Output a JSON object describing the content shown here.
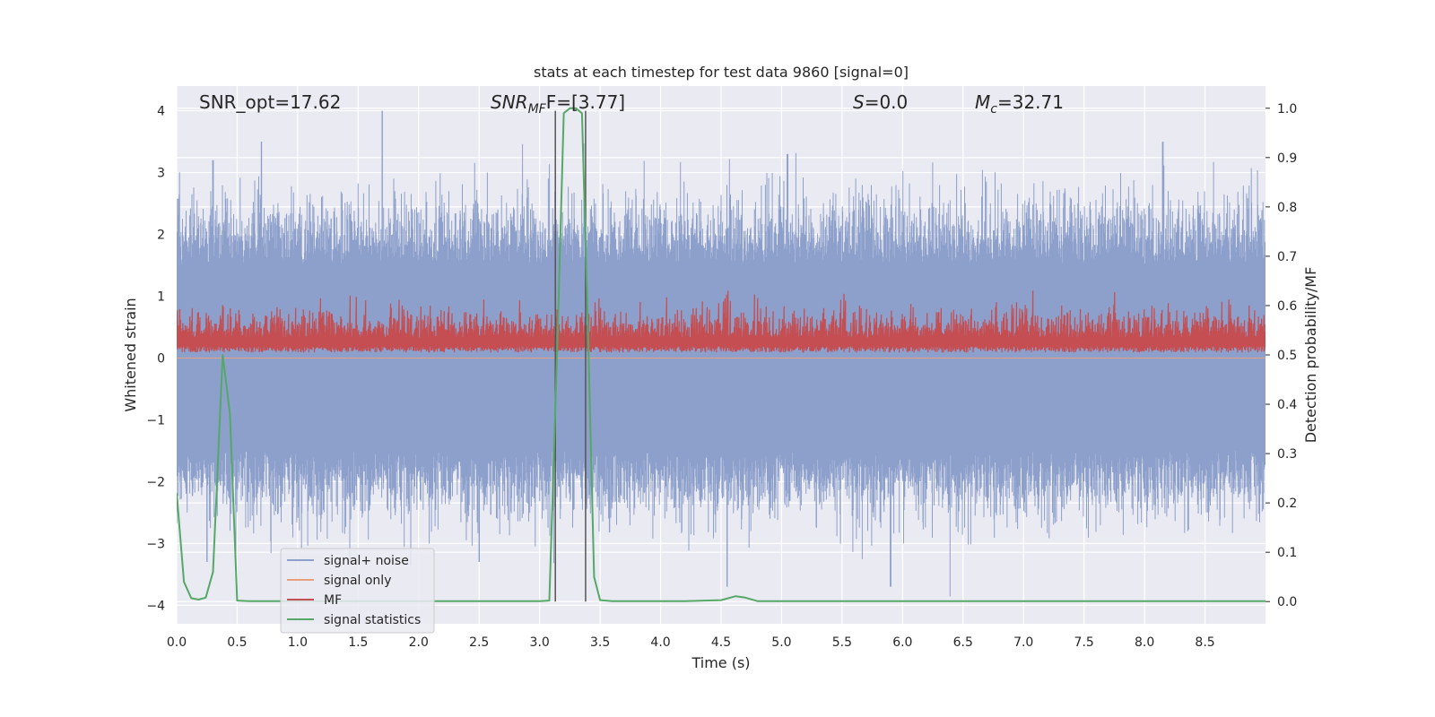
{
  "chart_data": {
    "type": "line",
    "title": "stats at each timestep for test data 9860 [signal=0]",
    "xlabel": "Time (s)",
    "ylabel_left": "Whitened strain",
    "ylabel_right": "Detection probability/MF",
    "xlim": [
      0,
      9.0
    ],
    "ylim_left": [
      -4.3,
      4.4
    ],
    "ylim_right": [
      -0.045,
      1.045
    ],
    "x_ticks": [
      0.0,
      0.5,
      1.0,
      1.5,
      2.0,
      2.5,
      3.0,
      3.5,
      4.0,
      4.5,
      5.0,
      5.5,
      6.0,
      6.5,
      7.0,
      7.5,
      8.0,
      8.5
    ],
    "x_tick_labels": [
      "0.0",
      "0.5",
      "1.0",
      "1.5",
      "2.0",
      "2.5",
      "3.0",
      "3.5",
      "4.0",
      "4.5",
      "5.0",
      "5.5",
      "6.0",
      "6.5",
      "7.0",
      "7.5",
      "8.0",
      "8.5"
    ],
    "y_left_ticks": [
      -4,
      -3,
      -2,
      -1,
      0,
      1,
      2,
      3,
      4
    ],
    "y_left_tick_labels": [
      "−4",
      "−3",
      "−2",
      "−1",
      "0",
      "1",
      "2",
      "3",
      "4"
    ],
    "y_right_ticks": [
      0.0,
      0.1,
      0.2,
      0.3,
      0.4,
      0.5,
      0.6,
      0.7,
      0.8,
      0.9,
      1.0
    ],
    "y_right_tick_labels": [
      "0.0",
      "0.1",
      "0.2",
      "0.3",
      "0.4",
      "0.5",
      "0.6",
      "0.7",
      "0.8",
      "0.9",
      "1.0"
    ],
    "grid": true,
    "legend_placement": "lower-left",
    "annotations": {
      "snr_opt": "SNR_opt=17.62",
      "snr_mf_main": "SNR",
      "snr_mf_sub": "MF",
      "snr_mf_rest": "F=[3.77]",
      "s_var": "S",
      "s_rest": "=0.0",
      "mc_main": "M",
      "mc_sub": "c",
      "mc_rest": "=32.71"
    },
    "vertical_lines_x": [
      3.13,
      3.38
    ],
    "series": [
      {
        "name": "signal+ noise",
        "axis": "left",
        "color": "#8da0cb",
        "description_values": {
          "typical_positive_band": [
            1.5,
            2.5
          ],
          "typical_negative_band": [
            -2.5,
            -1.5
          ],
          "peak_positive": [
            [
              1.7,
              4.0
            ],
            [
              0.7,
              3.5
            ],
            [
              8.15,
              3.5
            ],
            [
              0.3,
              3.2
            ],
            [
              5.05,
              3.3
            ]
          ],
          "peak_negative": [
            [
              0.25,
              -3.3
            ],
            [
              2.5,
              -3.3
            ],
            [
              4.55,
              -3.7
            ],
            [
              5.9,
              -3.7
            ]
          ]
        }
      },
      {
        "name": "signal only",
        "axis": "left",
        "color": "#e8a07f",
        "values_note": "flat at 0"
      },
      {
        "name": "MF",
        "axis": "right",
        "color": "#c44e52",
        "range": [
          0.5,
          0.62
        ]
      },
      {
        "name": "signal statistics",
        "axis": "right",
        "color": "#55a868",
        "x": [
          0.0,
          0.06,
          0.12,
          0.18,
          0.24,
          0.3,
          0.38,
          0.44,
          0.5,
          0.6,
          1.0,
          2.0,
          3.0,
          3.08,
          3.15,
          3.2,
          3.25,
          3.3,
          3.35,
          3.4,
          3.45,
          3.5,
          3.6,
          3.8,
          4.2,
          4.5,
          4.62,
          4.7,
          4.8,
          5.0,
          6.0,
          7.0,
          8.0,
          9.0
        ],
        "y": [
          0.22,
          0.04,
          0.007,
          0.004,
          0.008,
          0.06,
          0.5,
          0.38,
          0.002,
          0.001,
          0.001,
          0.001,
          0.001,
          0.002,
          0.55,
          0.99,
          1.0,
          1.0,
          0.99,
          0.55,
          0.05,
          0.003,
          0.001,
          0.001,
          0.001,
          0.003,
          0.011,
          0.008,
          0.001,
          0.001,
          0.001,
          0.001,
          0.001,
          0.001
        ]
      }
    ]
  }
}
